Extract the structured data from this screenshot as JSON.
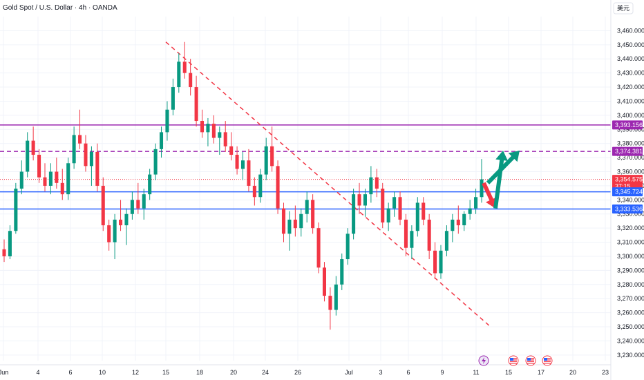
{
  "header": {
    "title": "Gold Spot / U.S. Dollar · 4h · OANDA",
    "currency_button": "美元"
  },
  "colors": {
    "up": "#089981",
    "down": "#f23645",
    "resistance_purple": "#9c27b0",
    "support_blue": "#2962ff",
    "trend_dash": "#f23645",
    "arrow_teal": "#089981",
    "arrow_red": "#f23645",
    "grid": "#f0f3fa"
  },
  "price_tags": [
    {
      "value": 3393.156,
      "label": "3,393.156",
      "color": "#9c27b0",
      "style": "solid"
    },
    {
      "value": 3374.381,
      "label": "3,374.381",
      "color": "#9c27b0",
      "style": "dashed"
    },
    {
      "value": 3354.575,
      "label": "3,354.575",
      "sub": "37:15",
      "color": "#f23645",
      "style": "dotted"
    },
    {
      "value": 3345.724,
      "label": "3,345.724",
      "color": "#2962ff",
      "style": "solid"
    },
    {
      "value": 3333.536,
      "label": "3,333.536",
      "color": "#2962ff",
      "style": "solid"
    }
  ],
  "event_icons": [
    {
      "name": "lightning-icon",
      "date_index": 11
    },
    {
      "name": "us-flag-icon",
      "date_index": 13
    },
    {
      "name": "us-flag-icon",
      "date_index": 14
    },
    {
      "name": "us-flag-icon",
      "date_index": 15
    }
  ],
  "chart_data": {
    "type": "candlestick",
    "title": "Gold Spot / U.S. Dollar · 4h · OANDA",
    "ylim": [
      3226,
      3470
    ],
    "y_ticks": [
      3230,
      3240,
      3250,
      3260,
      3270,
      3280,
      3290,
      3300,
      3310,
      3320,
      3330,
      3340,
      3350,
      3360,
      3370,
      3380,
      3390,
      3400,
      3410,
      3420,
      3430,
      3440,
      3450,
      3460
    ],
    "y_tick_labels": [
      "3,230.000",
      "3,240.000",
      "3,250.000",
      "3,260.000",
      "3,270.000",
      "3,280.000",
      "3,290.000",
      "3,300.000",
      "3,310.000",
      "3,320.000",
      "3,330.000",
      "3,340.000",
      "3,350.000",
      "3,360.000",
      "3,370.000",
      "3,380.000",
      "3,390.000",
      "3,400.000",
      "3,410.000",
      "3,420.000",
      "3,430.000",
      "3,440.000",
      "3,450.000",
      "3,460.000"
    ],
    "x_tick_labels": [
      "Jun",
      "4",
      "6",
      "10",
      "12",
      "15",
      "18",
      "20",
      "24",
      "26",
      "Jul",
      "3",
      "6",
      "9",
      "11",
      "15",
      "17",
      "20",
      "23"
    ],
    "grid": true,
    "candles": [
      [
        3305,
        3312,
        3296,
        3300
      ],
      [
        3300,
        3322,
        3298,
        3318
      ],
      [
        3318,
        3352,
        3316,
        3348
      ],
      [
        3348,
        3368,
        3344,
        3360
      ],
      [
        3360,
        3388,
        3356,
        3382
      ],
      [
        3382,
        3392,
        3368,
        3372
      ],
      [
        3372,
        3376,
        3352,
        3356
      ],
      [
        3356,
        3366,
        3346,
        3350
      ],
      [
        3350,
        3366,
        3344,
        3360
      ],
      [
        3360,
        3370,
        3348,
        3352
      ],
      [
        3352,
        3362,
        3340,
        3344
      ],
      [
        3344,
        3370,
        3340,
        3366
      ],
      [
        3366,
        3392,
        3362,
        3386
      ],
      [
        3386,
        3404,
        3376,
        3380
      ],
      [
        3380,
        3386,
        3360,
        3364
      ],
      [
        3364,
        3378,
        3350,
        3374
      ],
      [
        3374,
        3380,
        3346,
        3350
      ],
      [
        3350,
        3356,
        3318,
        3322
      ],
      [
        3322,
        3326,
        3304,
        3310
      ],
      [
        3310,
        3330,
        3298,
        3326
      ],
      [
        3326,
        3340,
        3318,
        3322
      ],
      [
        3322,
        3334,
        3308,
        3330
      ],
      [
        3330,
        3346,
        3326,
        3340
      ],
      [
        3340,
        3352,
        3330,
        3334
      ],
      [
        3334,
        3348,
        3326,
        3344
      ],
      [
        3344,
        3362,
        3340,
        3358
      ],
      [
        3358,
        3380,
        3354,
        3376
      ],
      [
        3376,
        3392,
        3370,
        3388
      ],
      [
        3388,
        3410,
        3382,
        3404
      ],
      [
        3404,
        3426,
        3400,
        3420
      ],
      [
        3420,
        3444,
        3416,
        3438
      ],
      [
        3438,
        3452,
        3426,
        3430
      ],
      [
        3430,
        3440,
        3414,
        3420
      ],
      [
        3420,
        3428,
        3392,
        3396
      ],
      [
        3396,
        3404,
        3384,
        3388
      ],
      [
        3388,
        3398,
        3378,
        3394
      ],
      [
        3394,
        3400,
        3380,
        3384
      ],
      [
        3384,
        3392,
        3372,
        3388
      ],
      [
        3388,
        3396,
        3374,
        3378
      ],
      [
        3378,
        3388,
        3368,
        3372
      ],
      [
        3372,
        3378,
        3358,
        3362
      ],
      [
        3362,
        3374,
        3354,
        3368
      ],
      [
        3368,
        3376,
        3346,
        3350
      ],
      [
        3350,
        3356,
        3336,
        3342
      ],
      [
        3342,
        3362,
        3338,
        3358
      ],
      [
        3358,
        3384,
        3354,
        3378
      ],
      [
        3378,
        3392,
        3360,
        3364
      ],
      [
        3364,
        3368,
        3330,
        3334
      ],
      [
        3334,
        3338,
        3310,
        3316
      ],
      [
        3316,
        3332,
        3304,
        3326
      ],
      [
        3326,
        3336,
        3314,
        3320
      ],
      [
        3320,
        3334,
        3314,
        3330
      ],
      [
        3330,
        3346,
        3324,
        3340
      ],
      [
        3340,
        3344,
        3316,
        3320
      ],
      [
        3320,
        3324,
        3288,
        3292
      ],
      [
        3292,
        3296,
        3268,
        3272
      ],
      [
        3272,
        3278,
        3248,
        3262
      ],
      [
        3262,
        3286,
        3258,
        3280
      ],
      [
        3280,
        3302,
        3276,
        3298
      ],
      [
        3298,
        3320,
        3294,
        3316
      ],
      [
        3316,
        3348,
        3312,
        3344
      ],
      [
        3344,
        3352,
        3330,
        3336
      ],
      [
        3336,
        3348,
        3328,
        3344
      ],
      [
        3344,
        3364,
        3338,
        3356
      ],
      [
        3356,
        3362,
        3342,
        3348
      ],
      [
        3348,
        3352,
        3320,
        3324
      ],
      [
        3324,
        3338,
        3318,
        3334
      ],
      [
        3334,
        3346,
        3328,
        3342
      ],
      [
        3342,
        3346,
        3322,
        3326
      ],
      [
        3326,
        3330,
        3300,
        3306
      ],
      [
        3306,
        3322,
        3298,
        3318
      ],
      [
        3318,
        3342,
        3314,
        3338
      ],
      [
        3338,
        3342,
        3322,
        3326
      ],
      [
        3326,
        3330,
        3298,
        3304
      ],
      [
        3304,
        3310,
        3284,
        3288
      ],
      [
        3288,
        3308,
        3284,
        3304
      ],
      [
        3304,
        3322,
        3300,
        3318
      ],
      [
        3318,
        3330,
        3310,
        3326
      ],
      [
        3326,
        3336,
        3316,
        3322
      ],
      [
        3322,
        3332,
        3318,
        3330
      ],
      [
        3330,
        3340,
        3326,
        3334
      ],
      [
        3334,
        3348,
        3330,
        3342
      ],
      [
        3342,
        3369,
        3338,
        3354.575
      ]
    ]
  }
}
